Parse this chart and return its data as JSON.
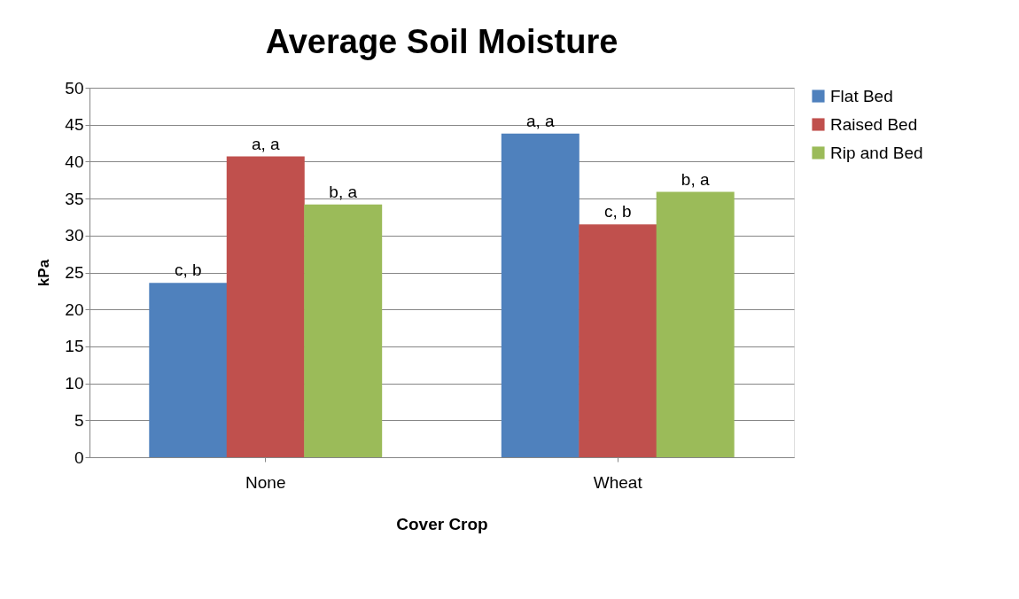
{
  "chart_data": {
    "type": "bar",
    "title": "Average Soil Moisture",
    "xlabel": "Cover Crop",
    "ylabel": "kPa",
    "categories": [
      "None",
      "Wheat"
    ],
    "series": [
      {
        "name": "Flat Bed",
        "color": "#4f81bd",
        "values": [
          23.6,
          43.8
        ],
        "value_labels": [
          "c, b",
          "a, a"
        ]
      },
      {
        "name": "Raised Bed",
        "color": "#c0504d",
        "values": [
          40.7,
          31.5
        ],
        "value_labels": [
          "a, a",
          "c, b"
        ]
      },
      {
        "name": "Rip and Bed",
        "color": "#9bbb59",
        "values": [
          34.2,
          35.9
        ],
        "value_labels": [
          "b, a",
          "b, a"
        ]
      }
    ],
    "ylim": [
      0,
      50
    ],
    "yticks": [
      0,
      5,
      10,
      15,
      20,
      25,
      30,
      35,
      40,
      45,
      50
    ],
    "grid": "y",
    "legend": "right"
  }
}
